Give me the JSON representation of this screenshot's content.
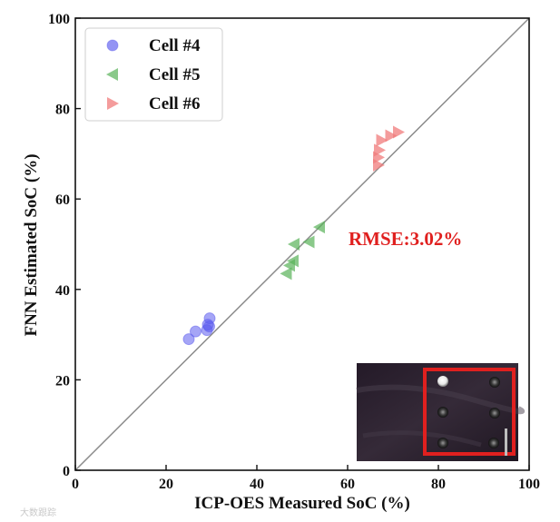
{
  "chart_data": {
    "type": "scatter",
    "title": "",
    "xlabel": "ICP-OES Measured  SoC (%)",
    "ylabel": "FNN Estimated SoC (%)",
    "xlim": [
      0,
      100
    ],
    "ylim": [
      0,
      100
    ],
    "xticks": [
      0,
      20,
      40,
      60,
      80,
      100
    ],
    "yticks": [
      0,
      20,
      40,
      60,
      80,
      100
    ],
    "grid": false,
    "legend_position": "top-left",
    "reference_line": {
      "x": [
        0,
        100
      ],
      "y": [
        0,
        100
      ],
      "color": "#8c8c8c"
    },
    "series": [
      {
        "name": "Cell #4",
        "marker": "circle",
        "color": "#5b5bee",
        "points": [
          [
            25.0,
            29.0
          ],
          [
            26.5,
            30.7
          ],
          [
            29.0,
            31.0
          ],
          [
            29.2,
            32.2
          ],
          [
            29.5,
            31.8
          ],
          [
            29.6,
            33.6
          ]
        ]
      },
      {
        "name": "Cell #5",
        "marker": "triangle-left",
        "color": "#59b259",
        "points": [
          [
            46.5,
            43.5
          ],
          [
            47.2,
            45.3
          ],
          [
            48.0,
            46.3
          ],
          [
            48.2,
            50.0
          ],
          [
            51.5,
            50.5
          ],
          [
            53.8,
            53.8
          ]
        ]
      },
      {
        "name": "Cell #6",
        "marker": "triangle-right",
        "color": "#f07b7b",
        "points": [
          [
            66.8,
            67.5
          ],
          [
            66.8,
            69.2
          ],
          [
            67.0,
            70.8
          ],
          [
            67.5,
            73.0
          ],
          [
            69.5,
            74.0
          ],
          [
            71.2,
            74.8
          ]
        ]
      }
    ],
    "annotations": [
      {
        "text": "RMSE:3.02%",
        "x": 71,
        "y": 50,
        "color": "#e0201f"
      }
    ]
  },
  "inset": {
    "description_label": "sample-photo",
    "highlight_color": "#e0201f"
  },
  "watermark": {
    "text": "大数跟踪"
  }
}
